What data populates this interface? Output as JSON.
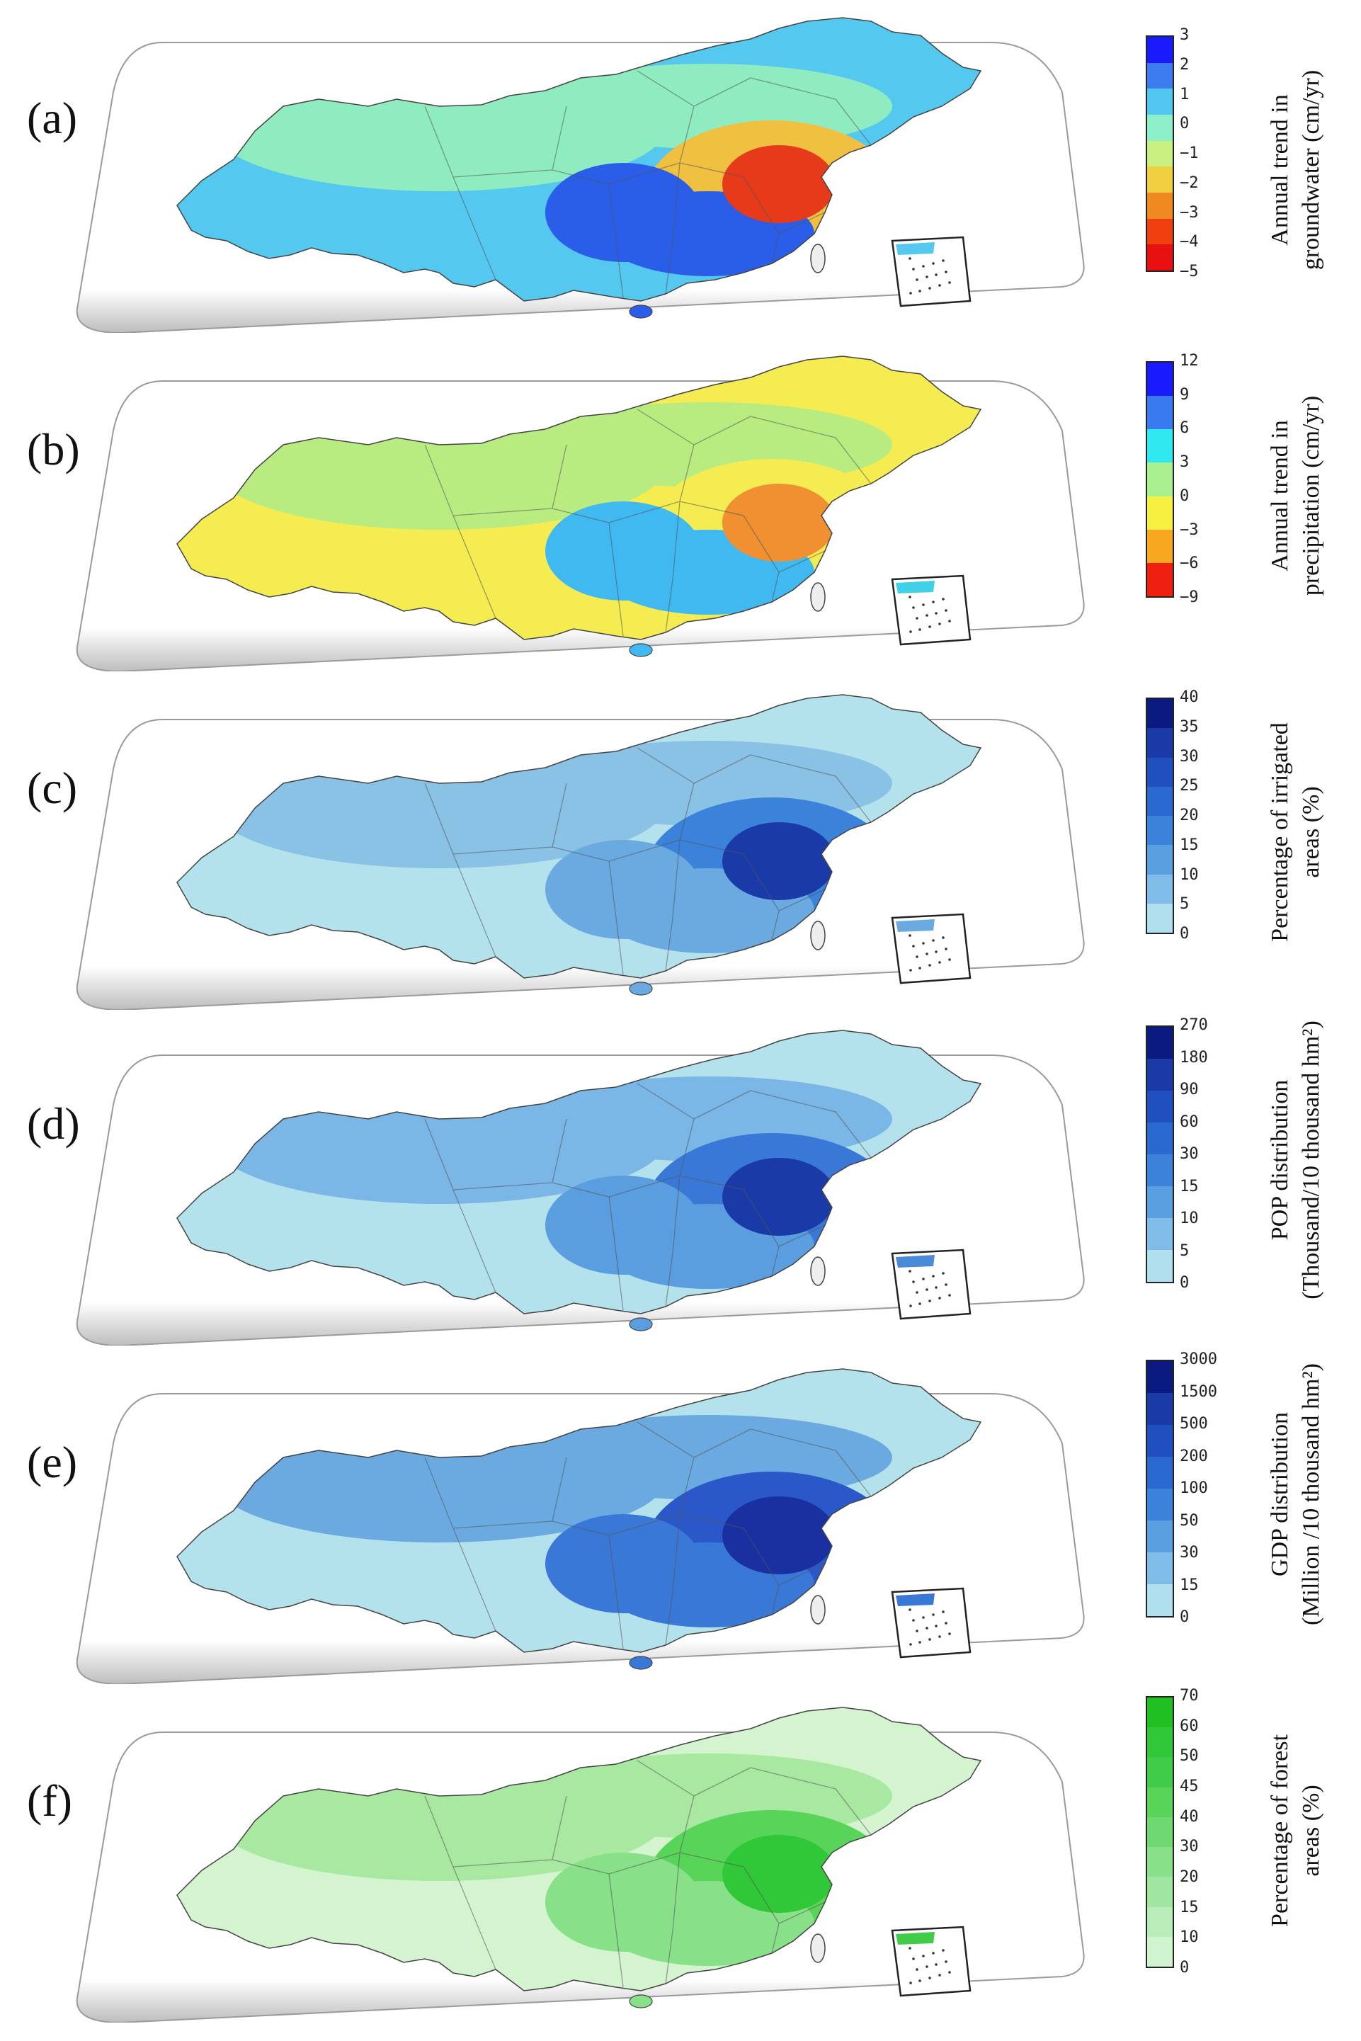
{
  "panels": [
    {
      "label": "(a)",
      "title_line1": "Annual trend in",
      "title_line2": "groundwater (cm/yr)",
      "ticks": [
        "3",
        "2",
        "1",
        "0",
        "−1",
        "−2",
        "−3",
        "−4",
        "−5"
      ],
      "colors": [
        "#1a1aff",
        "#3d7bf0",
        "#52c8f0",
        "#8ef0c8",
        "#c8f080",
        "#f0d040",
        "#f08a20",
        "#f04010",
        "#e81010"
      ],
      "map_colors": {
        "base": "#55c8f0",
        "mid": "#8eecc0",
        "hot": "#e63a1a",
        "warm": "#f0c040",
        "deep": "#2a5ee8",
        "inset": "#55c8f0"
      }
    },
    {
      "label": "(b)",
      "title_line1": "Annual trend in",
      "title_line2": "precipitation (cm/yr)",
      "ticks": [
        "12",
        "9",
        "6",
        "3",
        "0",
        "−3",
        "−6",
        "−9"
      ],
      "colors": [
        "#1a1aff",
        "#3a7af0",
        "#30e8f0",
        "#a8f090",
        "#f8f040",
        "#f8a820",
        "#f02010"
      ],
      "map_colors": {
        "base": "#f4ec50",
        "mid": "#b8ec80",
        "hot": "#f09030",
        "warm": "#f4ec50",
        "deep": "#40b8f0",
        "inset": "#40d0e8"
      }
    },
    {
      "label": "(c)",
      "title_line1": "Percentage of irrigated",
      "title_line2": "areas (%)",
      "ticks": [
        "40",
        "35",
        "30",
        "25",
        "20",
        "15",
        "10",
        "5",
        "0"
      ],
      "colors": [
        "#0a1a80",
        "#1a3aa8",
        "#2050c0",
        "#2a6ad0",
        "#3a82da",
        "#5aa0e0",
        "#80bce8",
        "#b0e0ee"
      ],
      "map_colors": {
        "base": "#b4e2ec",
        "mid": "#8ac2e6",
        "hot": "#1a3aa8",
        "warm": "#3a82da",
        "deep": "#6aaae0",
        "inset": "#6aaae0"
      }
    },
    {
      "label": "(d)",
      "title_line1": "POP distribution",
      "title_line2": "(Thousand/10 thousand hm²)",
      "ticks": [
        "270",
        "180",
        "90",
        "60",
        "30",
        "15",
        "10",
        "5",
        "0"
      ],
      "colors": [
        "#0a1a80",
        "#1a3aa8",
        "#2050c0",
        "#2a6ad0",
        "#3a82da",
        "#5aa0e0",
        "#80bce8",
        "#b0e0ee"
      ],
      "map_colors": {
        "base": "#b4e2ec",
        "mid": "#7ab6e6",
        "hot": "#1a3aa8",
        "warm": "#3a78d8",
        "deep": "#5a9ee0",
        "inset": "#4a8ad8"
      }
    },
    {
      "label": "(e)",
      "title_line1": "GDP distribution",
      "title_line2": "(Million /10 thousand hm²)",
      "ticks": [
        "3000",
        "1500",
        "500",
        "200",
        "100",
        "50",
        "30",
        "15",
        "0"
      ],
      "colors": [
        "#0a1a80",
        "#1a3aa8",
        "#2050c0",
        "#2a6ad0",
        "#3a82da",
        "#5aa0e0",
        "#80bce8",
        "#b0e0ee"
      ],
      "map_colors": {
        "base": "#b4e2ec",
        "mid": "#6aaae0",
        "hot": "#1a30a0",
        "warm": "#2a58c8",
        "deep": "#3a78d8",
        "inset": "#3a78d8"
      }
    },
    {
      "label": "(f)",
      "title_line1": "Percentage of forest",
      "title_line2": "areas (%)",
      "ticks": [
        "70",
        "60",
        "50",
        "45",
        "40",
        "30",
        "20",
        "15",
        "10",
        "0"
      ],
      "colors": [
        "#20c020",
        "#30c838",
        "#40cc48",
        "#58d458",
        "#70d870",
        "#88e088",
        "#a0e6a0",
        "#b8ecb8",
        "#d0f4d0"
      ],
      "map_colors": {
        "base": "#d4f4d0",
        "mid": "#a8e8a0",
        "hot": "#30c838",
        "warm": "#58d458",
        "deep": "#88e088",
        "inset": "#40cc48"
      }
    }
  ]
}
